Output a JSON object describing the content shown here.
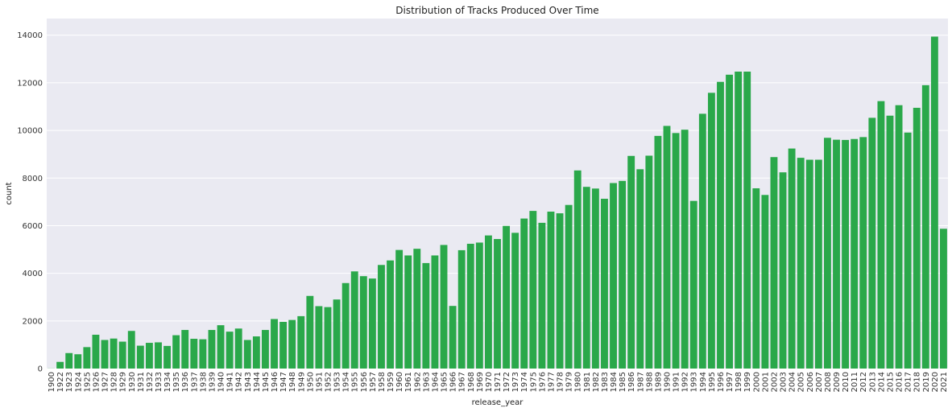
{
  "chart_data": {
    "type": "bar",
    "title": "Distribution of Tracks Produced Over Time",
    "xlabel": "release_year",
    "ylabel": "count",
    "ylim": [
      0,
      14700
    ],
    "yticks": [
      "0",
      "2000",
      "4000",
      "6000",
      "8000",
      "10000",
      "12000",
      "14000"
    ],
    "grid": true,
    "bar_color": "#2aa84a",
    "background_color": "#eaeaf2",
    "grid_color": "#ffffff",
    "categories": [
      "1900",
      "1922",
      "1923",
      "1924",
      "1925",
      "1926",
      "1927",
      "1928",
      "1929",
      "1930",
      "1931",
      "1932",
      "1933",
      "1934",
      "1935",
      "1936",
      "1937",
      "1938",
      "1939",
      "1940",
      "1941",
      "1942",
      "1943",
      "1944",
      "1945",
      "1946",
      "1947",
      "1948",
      "1949",
      "1950",
      "1951",
      "1952",
      "1953",
      "1954",
      "1955",
      "1956",
      "1957",
      "1958",
      "1959",
      "1960",
      "1961",
      "1962",
      "1963",
      "1964",
      "1965",
      "1966",
      "1967",
      "1968",
      "1969",
      "1970",
      "1971",
      "1972",
      "1973",
      "1974",
      "1975",
      "1976",
      "1977",
      "1978",
      "1979",
      "1980",
      "1981",
      "1982",
      "1983",
      "1984",
      "1985",
      "1986",
      "1987",
      "1988",
      "1989",
      "1990",
      "1991",
      "1992",
      "1993",
      "1994",
      "1995",
      "1996",
      "1997",
      "1998",
      "1999",
      "2000",
      "2001",
      "2002",
      "2003",
      "2004",
      "2005",
      "2006",
      "2007",
      "2008",
      "2009",
      "2010",
      "2011",
      "2012",
      "2013",
      "2014",
      "2015",
      "2016",
      "2017",
      "2018",
      "2019",
      "2020",
      "2021"
    ],
    "values": [
      5,
      280,
      650,
      600,
      900,
      1420,
      1200,
      1260,
      1130,
      1580,
      960,
      1080,
      1100,
      950,
      1400,
      1620,
      1250,
      1230,
      1620,
      1820,
      1550,
      1680,
      1200,
      1350,
      1620,
      2080,
      1960,
      2040,
      2200,
      3050,
      2620,
      2580,
      2900,
      3590,
      4080,
      3880,
      3780,
      4350,
      4540,
      4980,
      4750,
      5030,
      4430,
      4750,
      5190,
      2630,
      4970,
      5240,
      5290,
      5590,
      5440,
      5990,
      5700,
      6300,
      6620,
      6120,
      6590,
      6520,
      6870,
      8320,
      7630,
      7560,
      7130,
      7790,
      7880,
      8930,
      8370,
      8940,
      9770,
      10190,
      9890,
      10030,
      7040,
      10700,
      11580,
      12040,
      12340,
      12470,
      12470,
      7570,
      7290,
      8880,
      8240,
      9240,
      8850,
      8770,
      8770,
      9690,
      9610,
      9600,
      9640,
      9720,
      10530,
      11230,
      10620,
      11060,
      9910,
      10950,
      11900,
      13940,
      5870
    ]
  }
}
